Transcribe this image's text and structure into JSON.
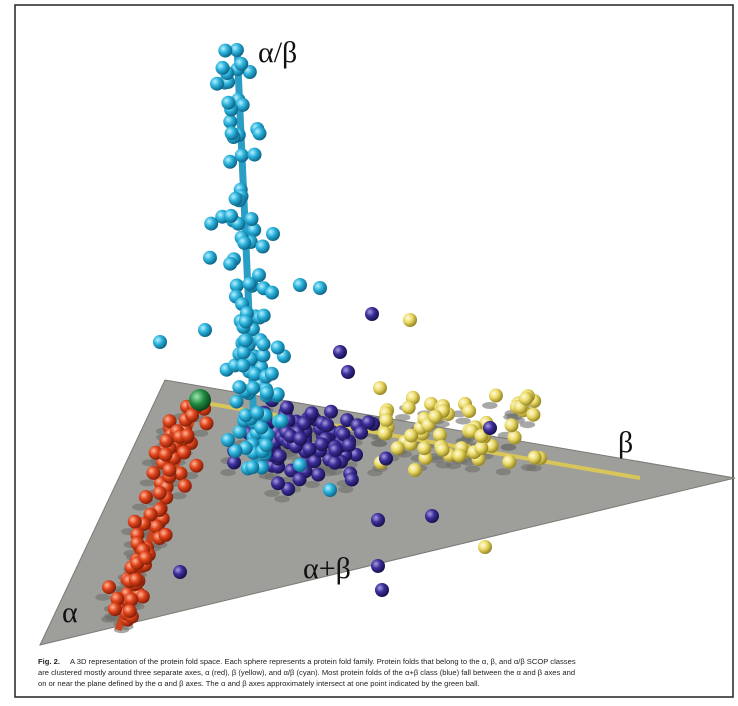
{
  "figure": {
    "axis_labels": {
      "alpha_beta": "α/β",
      "beta": "β",
      "alpha": "α",
      "alpha_plus_beta": "α+β"
    },
    "caption": {
      "label": "Fig. 2.",
      "lines": [
        "A 3D representation of the protein fold space. Each sphere represents a protein fold family. Protein folds that belong to the α, β, and α/β SCOP classes",
        "are clustered mostly around three separate axes, α (red), β (yellow), and α/β (cyan). Most protein folds of the α+β class (blue) fall between the α and β axes and",
        "on or near the plane defined by the α and β axes. The α and β axes approximately intersect at one point indicated by the green ball."
      ]
    }
  }
}
